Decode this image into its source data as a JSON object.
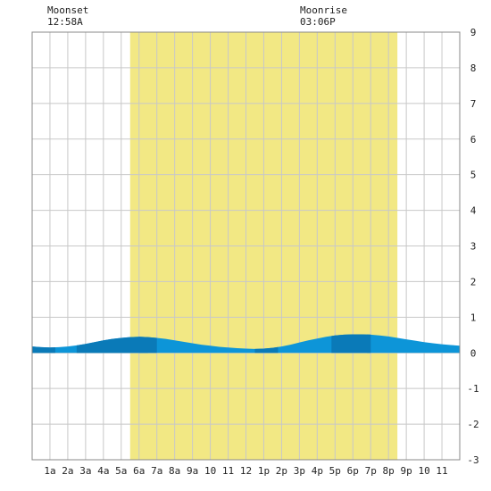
{
  "moon_events": [
    {
      "label": "Moonset",
      "time": "12:58A"
    },
    {
      "label": "Moonrise",
      "time": "03:06P"
    }
  ],
  "colors": {
    "daylight": "#f2e884",
    "grid": "#c8c8c8",
    "tide_light": "#0d95d8",
    "tide_dark": "#0a7ab8",
    "border": "#888888"
  },
  "chart_data": {
    "type": "area",
    "x_tick_labels": [
      "1a",
      "2a",
      "3a",
      "4a",
      "5a",
      "6a",
      "7a",
      "8a",
      "9a",
      "10",
      "11",
      "12",
      "1p",
      "2p",
      "3p",
      "4p",
      "5p",
      "6p",
      "7p",
      "8p",
      "9p",
      "10",
      "11"
    ],
    "y_tick_labels": [
      "9",
      "8",
      "7",
      "6",
      "5",
      "4",
      "3",
      "2",
      "1",
      "0",
      "-1",
      "-2",
      "-3"
    ],
    "ylim": [
      -3,
      9
    ],
    "xlim": [
      0,
      24
    ],
    "daylight_hours": [
      5.5,
      20.5
    ],
    "dark_bands": [
      [
        0,
        1.3
      ],
      [
        6,
        7
      ],
      [
        12.5,
        13.8
      ],
      [
        18.8,
        19
      ]
    ],
    "x_hours": [
      0,
      0.5,
      1,
      1.5,
      2,
      2.5,
      3,
      3.5,
      4,
      4.5,
      5,
      5.5,
      6,
      6.5,
      7,
      7.5,
      8,
      8.5,
      9,
      9.5,
      10,
      10.5,
      11,
      11.5,
      12,
      12.5,
      13,
      13.5,
      14,
      14.5,
      15,
      15.5,
      16,
      16.5,
      17,
      17.5,
      18,
      18.5,
      19,
      19.5,
      20,
      20.5,
      21,
      21.5,
      22,
      22.5,
      23,
      23.5,
      24
    ],
    "y_values": [
      0.18,
      0.16,
      0.15,
      0.16,
      0.18,
      0.21,
      0.25,
      0.3,
      0.35,
      0.39,
      0.42,
      0.44,
      0.45,
      0.44,
      0.42,
      0.39,
      0.35,
      0.31,
      0.27,
      0.23,
      0.2,
      0.17,
      0.15,
      0.13,
      0.12,
      0.11,
      0.12,
      0.14,
      0.18,
      0.23,
      0.29,
      0.35,
      0.4,
      0.45,
      0.49,
      0.51,
      0.52,
      0.52,
      0.51,
      0.49,
      0.46,
      0.42,
      0.38,
      0.34,
      0.3,
      0.27,
      0.24,
      0.22,
      0.2
    ],
    "grid": true
  }
}
